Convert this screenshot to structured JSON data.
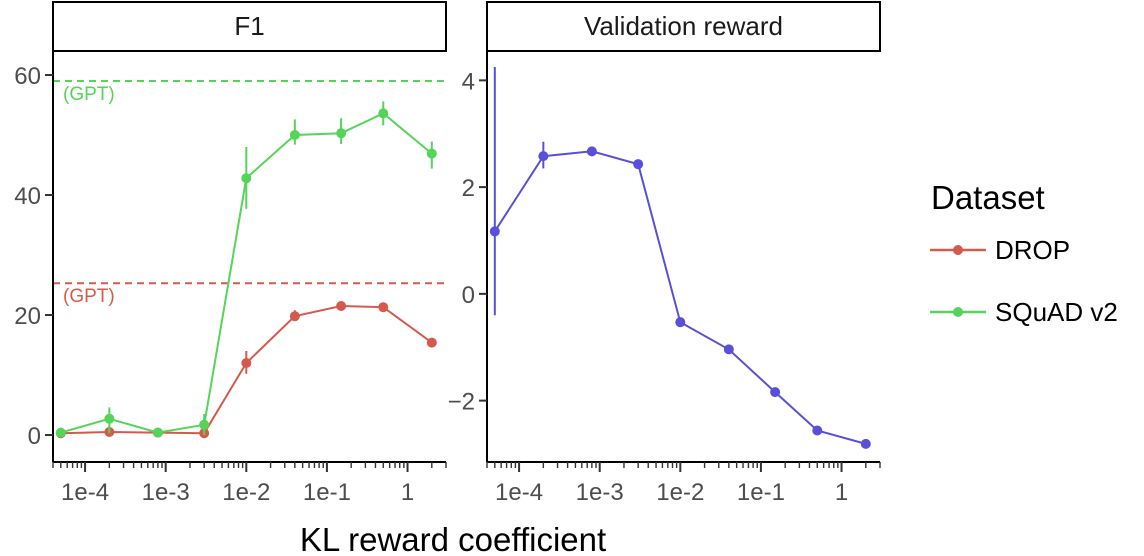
{
  "chart_data": {
    "type": "line",
    "x_title": "KL reward coefficient",
    "x_scale": "log",
    "legend": {
      "title": "Dataset",
      "placement": "right",
      "entries": [
        {
          "name": "DROP",
          "color": "#d55a4e"
        },
        {
          "name": "SQuAD v2",
          "color": "#55d45a"
        }
      ]
    },
    "panels": [
      {
        "title": "F1",
        "xlim": [
          4e-05,
          3
        ],
        "ylim": [
          -4.5,
          64
        ],
        "x_ticks": [
          {
            "value": 0.0001,
            "label": "1e-4"
          },
          {
            "value": 0.001,
            "label": "1e-3"
          },
          {
            "value": 0.01,
            "label": "1e-2"
          },
          {
            "value": 0.1,
            "label": "1e-1"
          },
          {
            "value": 1,
            "label": "1"
          }
        ],
        "y_ticks": [
          {
            "value": 0,
            "label": "0"
          },
          {
            "value": 20,
            "label": "20"
          },
          {
            "value": 40,
            "label": "40"
          },
          {
            "value": 60,
            "label": "60"
          }
        ],
        "reference_lines": [
          {
            "label": "(GPT)",
            "value": 59,
            "color": "#55d45a"
          },
          {
            "label": "(GPT)",
            "value": 25.3,
            "color": "#d55a4e"
          }
        ],
        "series": [
          {
            "name": "DROP",
            "color": "#d55a4e",
            "x": [
              5e-05,
              0.0002,
              0.0008,
              0.003,
              0.01,
              0.04,
              0.15,
              0.5,
              2
            ],
            "y": [
              0.3,
              0.5,
              0.4,
              0.3,
              12,
              19.8,
              21.5,
              21.3,
              15.4
            ],
            "err_low": [
              0.3,
              0.1,
              0.4,
              0.1,
              10.2,
              19,
              21.1,
              20.9,
              15.2
            ],
            "err_high": [
              0.6,
              1.4,
              0.6,
              1.2,
              14,
              20.8,
              21.9,
              21.7,
              15.6
            ]
          },
          {
            "name": "SQuAD v2",
            "color": "#55d45a",
            "x": [
              5e-05,
              0.0002,
              0.0008,
              0.003,
              0.01,
              0.04,
              0.15,
              0.5,
              2
            ],
            "y": [
              0.4,
              2.7,
              0.4,
              1.7,
              42.8,
              50,
              50.3,
              53.6,
              46.9
            ],
            "err_low": [
              0.2,
              0.3,
              0.1,
              0,
              37.7,
              48.4,
              48.5,
              51.6,
              44.4
            ],
            "err_high": [
              0.6,
              4.6,
              0.9,
              3.5,
              48,
              52.6,
              52.8,
              55.6,
              48.9
            ]
          }
        ]
      },
      {
        "title": "Validation reward",
        "xlim": [
          4e-05,
          3
        ],
        "ylim": [
          -3.15,
          4.55
        ],
        "x_ticks": [
          {
            "value": 0.0001,
            "label": "1e-4"
          },
          {
            "value": 0.001,
            "label": "1e-3"
          },
          {
            "value": 0.01,
            "label": "1e-2"
          },
          {
            "value": 0.1,
            "label": "1e-1"
          },
          {
            "value": 1,
            "label": "1"
          }
        ],
        "y_ticks": [
          {
            "value": -2,
            "label": "−2"
          },
          {
            "value": 0,
            "label": "0"
          },
          {
            "value": 2,
            "label": "2"
          },
          {
            "value": 4,
            "label": "4"
          }
        ],
        "series": [
          {
            "name": "Validation reward",
            "color": "#5a4fd8",
            "x": [
              5e-05,
              0.0002,
              0.0008,
              0.003,
              0.01,
              0.04,
              0.15,
              0.5,
              2
            ],
            "y": [
              1.17,
              2.58,
              2.67,
              2.43,
              -0.53,
              -1.04,
              -1.84,
              -2.56,
              -2.81
            ],
            "err_low": [
              -0.4,
              2.35,
              2.6,
              2.36,
              -0.58,
              -1.09,
              -1.89,
              -2.61,
              -2.86
            ],
            "err_high": [
              4.25,
              2.85,
              2.74,
              2.5,
              -0.48,
              -0.99,
              -1.79,
              -2.51,
              -2.76
            ]
          }
        ]
      }
    ]
  }
}
